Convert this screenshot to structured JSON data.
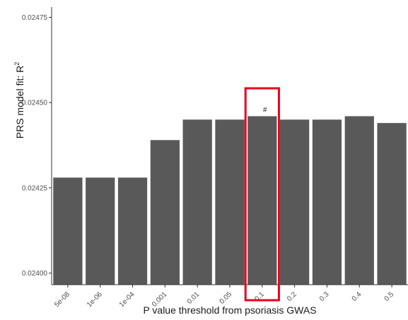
{
  "chart_data": {
    "type": "bar",
    "categories": [
      "5e-08",
      "1e-06",
      "1e-04",
      "0.001",
      "0.01",
      "0.05",
      "0.1",
      "0.2",
      "0.3",
      "0.4",
      "0.5"
    ],
    "values": [
      0.02428,
      0.02428,
      0.02428,
      0.02439,
      0.02445,
      0.02445,
      0.02446,
      0.02445,
      0.02445,
      0.02446,
      0.02444
    ],
    "xlabel": "P value threshold from psoriasis GWAS",
    "ylabel_main": "PRS model fit:  R",
    "ylabel_sup": "2",
    "ylim": [
      0.023966,
      0.02478
    ],
    "yticks": [
      "0.02400",
      "0.02425",
      "0.02450",
      "0.02475"
    ],
    "highlight": {
      "category": "0.1",
      "annotation": "#",
      "color": "#e8001c"
    },
    "bar_color": "#595959",
    "grid": false,
    "legend": false
  }
}
